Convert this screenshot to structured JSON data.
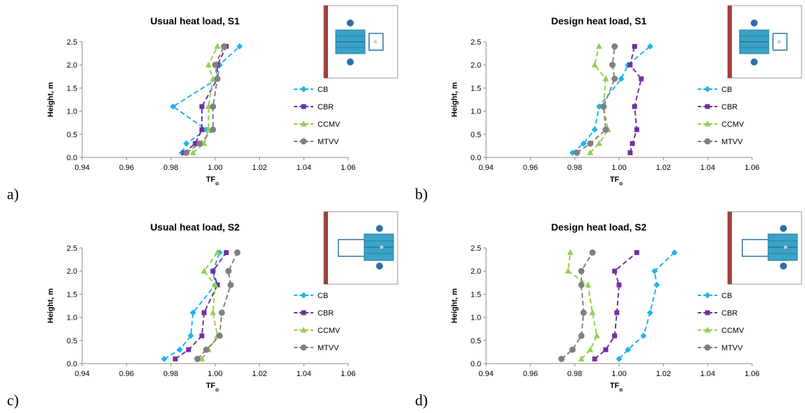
{
  "colors": {
    "CB": "#1EB4EA",
    "CBR": "#7030A0",
    "CCMV": "#92D050",
    "MTVV": "#808080",
    "inset_border": "#a04040",
    "inset_box": "#3aa3c7",
    "inset_dot": "#2e6fa8"
  },
  "panel_letters": [
    "a)",
    "b)",
    "c)",
    "d)"
  ],
  "legend_entries": [
    "CB",
    "CBR",
    "CCMV",
    "MTVV"
  ],
  "chart_data": [
    {
      "type": "line",
      "title": "Usual heat load, S1",
      "xlabel": "TF",
      "xlabel_sub": "o",
      "ylabel": "Height, m",
      "xlim": [
        0.94,
        1.06
      ],
      "ylim": [
        0,
        2.5
      ],
      "xticks": [
        "0.94",
        "0.96",
        "0.98",
        "1.00",
        "1.02",
        "1.04",
        "1.06"
      ],
      "yticks": [
        "0.0",
        "0.5",
        "1.0",
        "1.5",
        "2.0",
        "2.5"
      ],
      "legend_position": "right",
      "inset_icon": "room-layout-s1-icon",
      "series": [
        {
          "name": "CB",
          "marker": "diamond",
          "points": [
            [
              0.985,
              0.1
            ],
            [
              0.987,
              0.3
            ],
            [
              0.996,
              0.6
            ],
            [
              0.981,
              1.1
            ],
            [
              1.001,
              1.7
            ],
            [
              1.002,
              2.0
            ],
            [
              1.011,
              2.4
            ]
          ]
        },
        {
          "name": "CBR",
          "marker": "square",
          "points": [
            [
              0.986,
              0.1
            ],
            [
              0.991,
              0.3
            ],
            [
              0.994,
              0.6
            ],
            [
              0.994,
              1.1
            ],
            [
              1.001,
              1.7
            ],
            [
              1.001,
              2.0
            ],
            [
              1.005,
              2.4
            ]
          ]
        },
        {
          "name": "CCMV",
          "marker": "triangle",
          "points": [
            [
              0.99,
              0.1
            ],
            [
              0.995,
              0.3
            ],
            [
              0.997,
              0.6
            ],
            [
              0.997,
              1.1
            ],
            [
              0.999,
              1.7
            ],
            [
              0.997,
              2.0
            ],
            [
              1.001,
              2.4
            ]
          ]
        },
        {
          "name": "MTVV",
          "marker": "circle",
          "points": [
            [
              0.987,
              0.1
            ],
            [
              0.993,
              0.3
            ],
            [
              0.999,
              0.6
            ],
            [
              0.999,
              1.1
            ],
            [
              1.001,
              1.7
            ],
            [
              1.0,
              2.0
            ],
            [
              1.004,
              2.4
            ]
          ]
        }
      ]
    },
    {
      "type": "line",
      "title": "Design heat load, S1",
      "xlabel": "TF",
      "xlabel_sub": "o",
      "ylabel": "Height, m",
      "xlim": [
        0.94,
        1.06
      ],
      "ylim": [
        0,
        2.5
      ],
      "xticks": [
        "0.94",
        "0.96",
        "0.98",
        "1.00",
        "1.02",
        "1.04",
        "1.06"
      ],
      "yticks": [
        "0.0",
        "0.5",
        "1.0",
        "1.5",
        "2.0",
        "2.5"
      ],
      "legend_position": "right",
      "inset_icon": "room-layout-s1-icon",
      "series": [
        {
          "name": "CB",
          "marker": "diamond",
          "points": [
            [
              0.979,
              0.1
            ],
            [
              0.984,
              0.3
            ],
            [
              0.989,
              0.6
            ],
            [
              0.991,
              1.1
            ],
            [
              1.001,
              1.7
            ],
            [
              1.004,
              2.0
            ],
            [
              1.014,
              2.4
            ]
          ]
        },
        {
          "name": "CBR",
          "marker": "square",
          "points": [
            [
              1.005,
              0.1
            ],
            [
              1.006,
              0.3
            ],
            [
              1.008,
              0.6
            ],
            [
              1.007,
              1.1
            ],
            [
              1.01,
              1.7
            ],
            [
              1.005,
              2.0
            ],
            [
              1.007,
              2.4
            ]
          ]
        },
        {
          "name": "CCMV",
          "marker": "triangle",
          "points": [
            [
              0.987,
              0.1
            ],
            [
              0.991,
              0.3
            ],
            [
              0.995,
              0.6
            ],
            [
              0.993,
              1.1
            ],
            [
              0.994,
              1.7
            ],
            [
              0.989,
              2.0
            ],
            [
              0.991,
              2.4
            ]
          ]
        },
        {
          "name": "MTVV",
          "marker": "circle",
          "points": [
            [
              0.981,
              0.1
            ],
            [
              0.987,
              0.3
            ],
            [
              0.994,
              0.6
            ],
            [
              0.993,
              1.1
            ],
            [
              0.998,
              1.7
            ],
            [
              0.997,
              2.0
            ],
            [
              0.998,
              2.4
            ]
          ]
        }
      ]
    },
    {
      "type": "line",
      "title": "Usual heat load, S2",
      "xlabel": "TF",
      "xlabel_sub": "o",
      "ylabel": "Height, m",
      "xlim": [
        0.94,
        1.06
      ],
      "ylim": [
        0,
        2.5
      ],
      "xticks": [
        "0.94",
        "0.96",
        "0.98",
        "1.00",
        "1.02",
        "1.04",
        "1.06"
      ],
      "yticks": [
        "0.0",
        "0.5",
        "1.0",
        "1.5",
        "2.0",
        "2.5"
      ],
      "legend_position": "right",
      "inset_icon": "room-layout-s2-icon",
      "series": [
        {
          "name": "CB",
          "marker": "diamond",
          "points": [
            [
              0.977,
              0.1
            ],
            [
              0.984,
              0.3
            ],
            [
              0.989,
              0.6
            ],
            [
              0.99,
              1.1
            ],
            [
              1.0,
              1.7
            ],
            [
              0.999,
              2.0
            ],
            [
              1.002,
              2.4
            ]
          ]
        },
        {
          "name": "CBR",
          "marker": "square",
          "points": [
            [
              0.982,
              0.1
            ],
            [
              0.988,
              0.3
            ],
            [
              0.994,
              0.6
            ],
            [
              0.995,
              1.1
            ],
            [
              1.001,
              1.7
            ],
            [
              0.999,
              2.0
            ],
            [
              1.005,
              2.4
            ]
          ]
        },
        {
          "name": "CCMV",
          "marker": "triangle",
          "points": [
            [
              0.994,
              0.1
            ],
            [
              0.997,
              0.3
            ],
            [
              1.001,
              0.6
            ],
            [
              0.999,
              1.1
            ],
            [
              1.0,
              1.7
            ],
            [
              0.995,
              2.0
            ],
            [
              1.001,
              2.4
            ]
          ]
        },
        {
          "name": "MTVV",
          "marker": "circle",
          "points": [
            [
              0.992,
              0.1
            ],
            [
              0.996,
              0.3
            ],
            [
              1.002,
              0.6
            ],
            [
              1.003,
              1.1
            ],
            [
              1.007,
              1.7
            ],
            [
              1.006,
              2.0
            ],
            [
              1.01,
              2.4
            ]
          ]
        }
      ]
    },
    {
      "type": "line",
      "title": "Design heat load, S2",
      "xlabel": "TF",
      "xlabel_sub": "o",
      "ylabel": "Height, m",
      "xlim": [
        0.94,
        1.06
      ],
      "ylim": [
        0,
        2.5
      ],
      "xticks": [
        "0.94",
        "0.96",
        "0.98",
        "1.00",
        "1.02",
        "1.04",
        "1.06"
      ],
      "yticks": [
        "0.0",
        "0.5",
        "1.0",
        "1.5",
        "2.0",
        "2.5"
      ],
      "legend_position": "right",
      "inset_icon": "room-layout-s2-icon",
      "series": [
        {
          "name": "CB",
          "marker": "diamond",
          "points": [
            [
              1.0,
              0.1
            ],
            [
              1.004,
              0.3
            ],
            [
              1.011,
              0.6
            ],
            [
              1.014,
              1.1
            ],
            [
              1.017,
              1.7
            ],
            [
              1.016,
              2.0
            ],
            [
              1.025,
              2.4
            ]
          ]
        },
        {
          "name": "CBR",
          "marker": "square",
          "points": [
            [
              0.989,
              0.1
            ],
            [
              0.994,
              0.3
            ],
            [
              0.998,
              0.6
            ],
            [
              0.999,
              1.1
            ],
            [
              1.0,
              1.7
            ],
            [
              0.998,
              2.0
            ],
            [
              1.008,
              2.4
            ]
          ]
        },
        {
          "name": "CCMV",
          "marker": "triangle",
          "points": [
            [
              0.983,
              0.1
            ],
            [
              0.987,
              0.3
            ],
            [
              0.99,
              0.6
            ],
            [
              0.988,
              1.1
            ],
            [
              0.986,
              1.7
            ],
            [
              0.977,
              2.0
            ],
            [
              0.978,
              2.4
            ]
          ]
        },
        {
          "name": "MTVV",
          "marker": "circle",
          "points": [
            [
              0.974,
              0.1
            ],
            [
              0.979,
              0.3
            ],
            [
              0.983,
              0.6
            ],
            [
              0.984,
              1.1
            ],
            [
              0.983,
              1.7
            ],
            [
              0.983,
              2.0
            ],
            [
              0.988,
              2.4
            ]
          ]
        }
      ]
    }
  ]
}
